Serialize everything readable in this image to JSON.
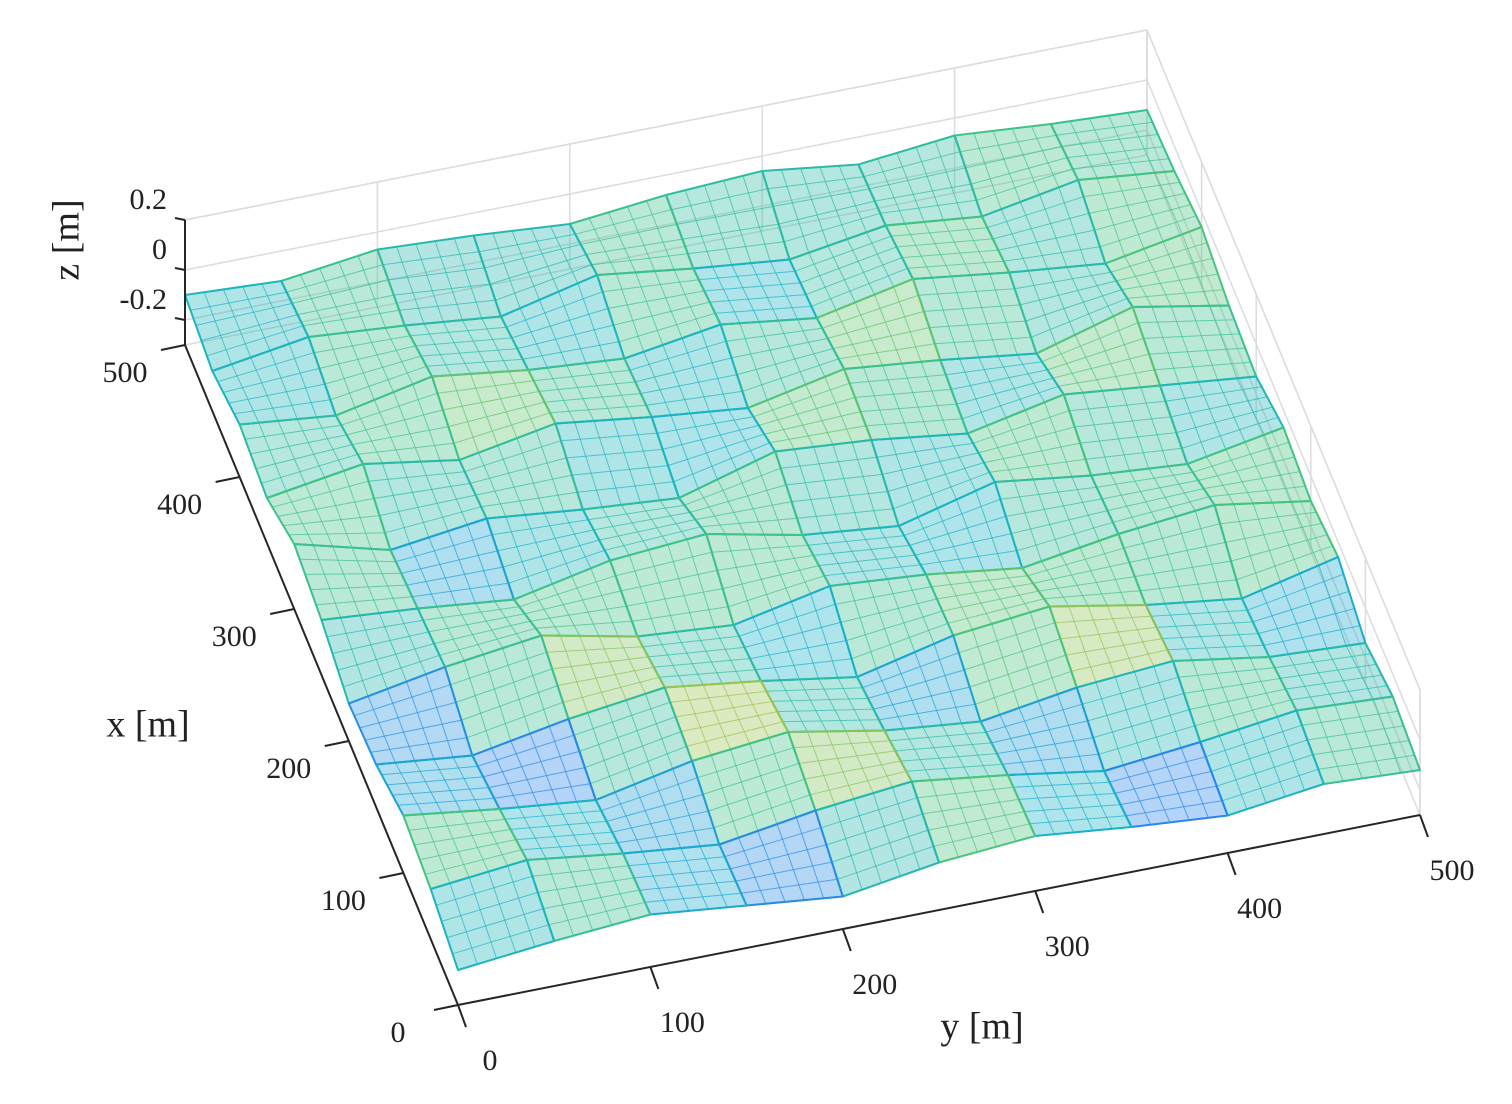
{
  "chart_data": {
    "type": "surface",
    "xlabel": "x [m]",
    "ylabel": "y [m]",
    "zlabel": "z [m]",
    "x": [
      0,
      50,
      100,
      150,
      200,
      250,
      300,
      350,
      400,
      450,
      500
    ],
    "y": [
      0,
      50,
      100,
      150,
      200,
      250,
      300,
      350,
      400,
      450,
      500
    ],
    "z": [
      [
        -0.16,
        -0.12,
        -0.09,
        -0.13,
        -0.17,
        -0.11,
        -0.08,
        -0.12,
        -0.15,
        -0.1,
        -0.12
      ],
      [
        -0.1,
        -0.06,
        -0.11,
        -0.15,
        -0.09,
        -0.05,
        -0.1,
        -0.16,
        -0.12,
        -0.07,
        -0.09
      ],
      [
        -0.07,
        -0.12,
        -0.16,
        -0.08,
        -0.04,
        -0.11,
        -0.15,
        -0.09,
        -0.06,
        -0.12,
        -0.14
      ],
      [
        -0.13,
        -0.17,
        -0.1,
        -0.05,
        -0.1,
        -0.16,
        -0.07,
        -0.03,
        -0.1,
        -0.15,
        -0.06
      ],
      [
        -0.15,
        -0.08,
        -0.03,
        -0.11,
        -0.14,
        -0.06,
        -0.09,
        -0.14,
        -0.08,
        -0.04,
        -0.1
      ],
      [
        -0.08,
        -0.11,
        -0.15,
        -0.07,
        -0.04,
        -0.12,
        -0.16,
        -0.06,
        -0.11,
        -0.14,
        -0.07
      ],
      [
        -0.04,
        -0.14,
        -0.09,
        -0.13,
        -0.16,
        -0.05,
        -0.08,
        -0.13,
        -0.05,
        -0.09,
        -0.13
      ],
      [
        -0.12,
        -0.06,
        -0.12,
        -0.05,
        -0.1,
        -0.14,
        -0.06,
        -0.1,
        -0.15,
        -0.04,
        -0.11
      ],
      [
        -0.09,
        -0.13,
        -0.05,
        -0.1,
        -0.13,
        -0.07,
        -0.12,
        -0.04,
        -0.09,
        -0.13,
        -0.06
      ],
      [
        -0.14,
        -0.08,
        -0.11,
        -0.15,
        -0.06,
        -0.11,
        -0.15,
        -0.09,
        -0.13,
        -0.06,
        -0.1
      ],
      [
        -0.1,
        -0.12,
        -0.07,
        -0.09,
        -0.12,
        -0.08,
        -0.06,
        -0.11,
        -0.07,
        -0.1,
        -0.12
      ]
    ],
    "xlim": [
      0,
      500
    ],
    "ylim": [
      0,
      500
    ],
    "zlim": [
      -0.3,
      0.2
    ],
    "xticks": [
      0,
      100,
      200,
      300,
      400,
      500
    ],
    "yticks": [
      0,
      100,
      200,
      300,
      400,
      500
    ],
    "zticks": [
      -0.2,
      0,
      0.2
    ],
    "grid": true,
    "colormap": [
      "#3e26a8",
      "#2d7fef",
      "#17b3c8",
      "#47c47e",
      "#c5c239",
      "#fcce2e"
    ]
  }
}
